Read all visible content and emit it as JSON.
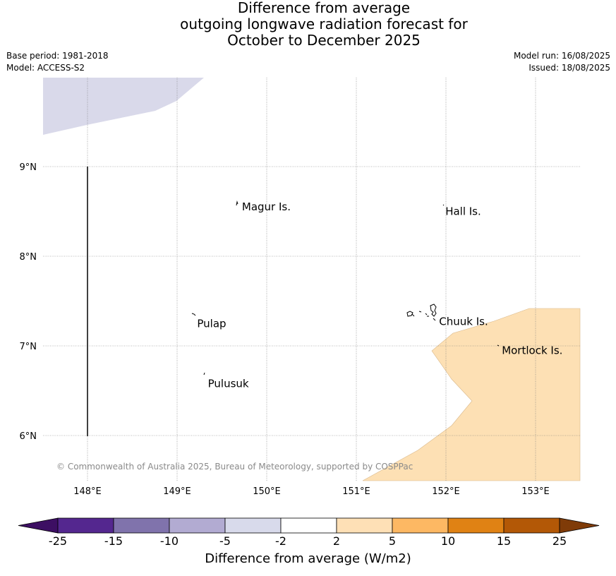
{
  "title": {
    "line1": "Difference from average",
    "line2": "outgoing longwave radiation forecast for",
    "line3": "October to December 2025"
  },
  "meta_left": {
    "base_period": "Base period: 1981-2018",
    "model": "Model: ACCESS-S2"
  },
  "meta_right": {
    "model_run": "Model run: 16/08/2025",
    "issued": "Issued: 18/08/2025"
  },
  "map": {
    "lon_labels": [
      "148°E",
      "149°E",
      "150°E",
      "151°E",
      "152°E",
      "153°E"
    ],
    "lat_labels": [
      "9°N",
      "8°N",
      "7°N",
      "6°N"
    ],
    "lon_values": [
      148,
      149,
      150,
      151,
      152,
      153
    ],
    "lat_values": [
      9,
      8,
      7,
      6
    ],
    "place_labels": [
      {
        "name": "Magur Is.",
        "lon": 149.7,
        "lat": 8.55
      },
      {
        "name": "Hall Is.",
        "lon": 151.97,
        "lat": 8.5
      },
      {
        "name": "Pulap",
        "lon": 149.2,
        "lat": 7.25
      },
      {
        "name": "Chuuk Is.",
        "lon": 151.9,
        "lat": 7.27
      },
      {
        "name": "Mortlock Is.",
        "lon": 152.6,
        "lat": 6.95
      },
      {
        "name": "Pulusuk",
        "lon": 149.32,
        "lat": 6.58
      }
    ],
    "copyright": "© Commonwealth of Australia 2025, Bureau of Meteorology, supported by COSPPac",
    "regions": [
      {
        "category": "-5 to -2",
        "color": "#d9d9ea"
      },
      {
        "category": "2 to 5",
        "color": "#fde0b4"
      }
    ]
  },
  "colorbar": {
    "ticks": [
      "-25",
      "-15",
      "-10",
      "-5",
      "-2",
      "2",
      "5",
      "10",
      "15",
      "25"
    ],
    "colors": [
      "#3d0f63",
      "#54278f",
      "#8073ac",
      "#b2abd2",
      "#d8daeb",
      "#ffffff",
      "#fee0b6",
      "#fdb863",
      "#e08214",
      "#b35806",
      "#7f3b08"
    ],
    "title": "Difference from average (W/m2)"
  }
}
